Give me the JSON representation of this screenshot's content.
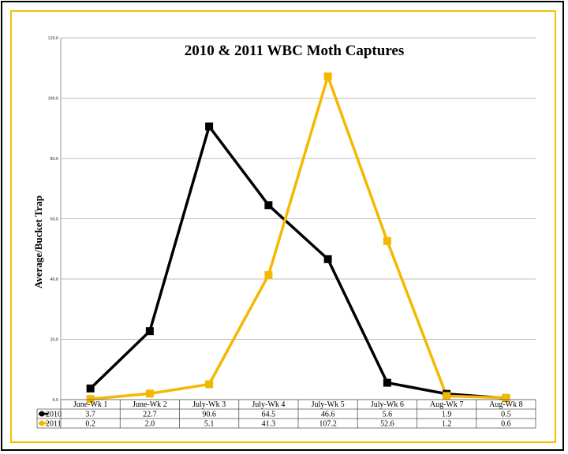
{
  "chart_data": {
    "type": "line",
    "title": "2010 & 2011 WBC Moth Captures",
    "xlabel": "",
    "ylabel": "Average/Bucket Trap",
    "ylim": [
      0,
      120
    ],
    "yticks": [
      "0.0",
      "20.0",
      "40.0",
      "60.0",
      "80.0",
      "100.0",
      "120.0"
    ],
    "grid": true,
    "legend": "data-table",
    "categories": [
      "June-Wk 1",
      "June-Wk 2",
      "July-Wk 3",
      "July-Wk 4",
      "July-Wk 5",
      "July-Wk 6",
      "Aug-Wk 7",
      "Aug-Wk 8"
    ],
    "series": [
      {
        "name": "2010",
        "color": "#000000",
        "values": [
          3.7,
          22.7,
          90.6,
          64.5,
          46.6,
          5.6,
          1.9,
          0.5
        ],
        "labels": [
          "3.7",
          "22.7",
          "90.6",
          "64.5",
          "46.6",
          "5.6",
          "1.9",
          "0.5"
        ]
      },
      {
        "name": "2011",
        "color": "#f5b800",
        "values": [
          0.2,
          2.0,
          5.1,
          41.3,
          107.2,
          52.6,
          1.2,
          0.6
        ],
        "labels": [
          "0.2",
          "2.0",
          "5.1",
          "41.3",
          "107.2",
          "52.6",
          "1.2",
          "0.6"
        ]
      }
    ]
  }
}
